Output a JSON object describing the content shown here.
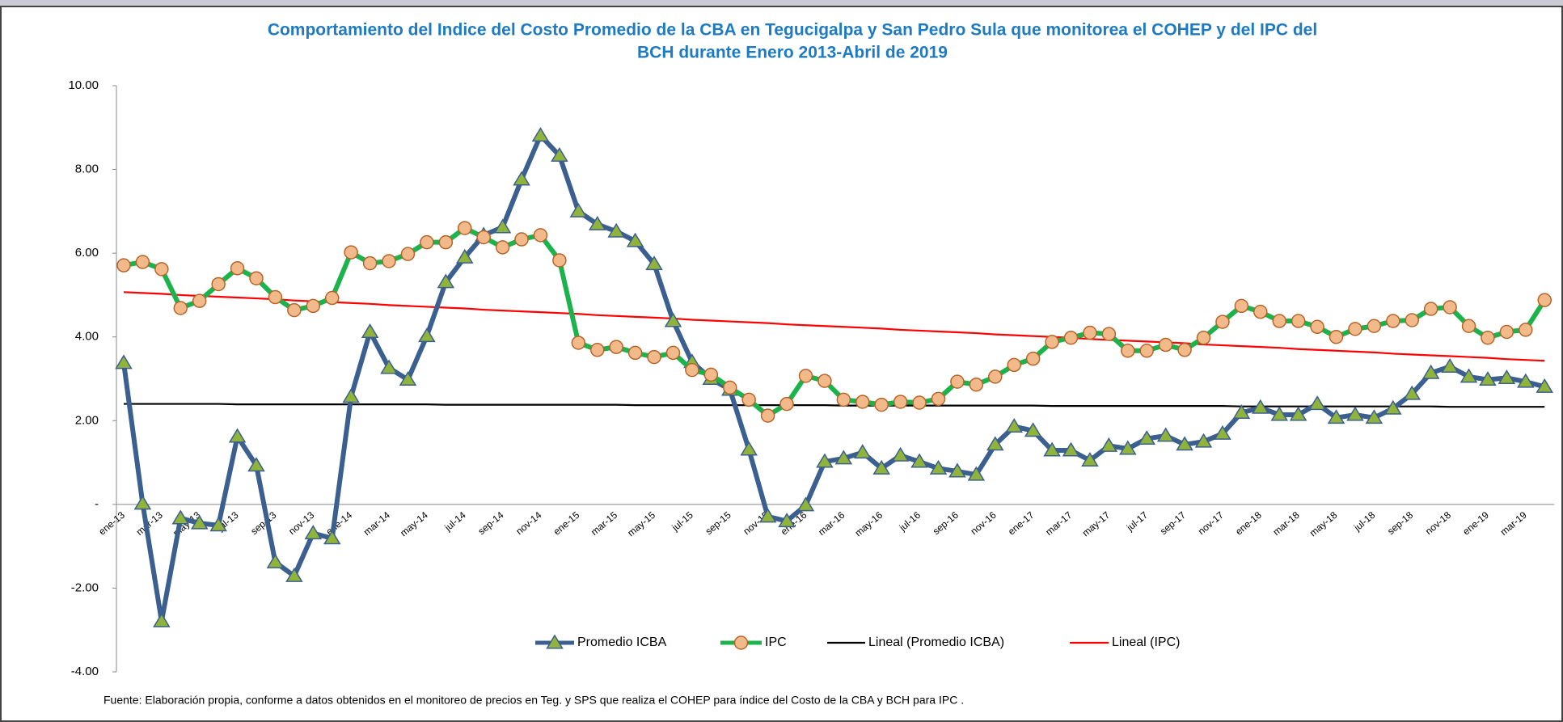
{
  "chart_data": {
    "type": "line",
    "title": [
      "Comportamiento del Indice del Costo Promedio de la CBA en Tegucigalpa y San Pedro Sula que monitorea el COHEP y del IPC del",
      "BCH durante Enero 2013-Abril de 2019"
    ],
    "source": "Fuente: Elaboración propia, conforme  a datos obtenidos en el monitoreo de precios en Teg. y SPS que realiza el COHEP para índice del Costo de la CBA y BCH para IPC .",
    "categories": [
      "ene-13",
      null,
      "mar-13",
      null,
      "may-13",
      null,
      "jul-13",
      null,
      "sep-13",
      null,
      "nov-13",
      null,
      "ene-14",
      null,
      "mar-14",
      null,
      "may-14",
      null,
      "jul-14",
      null,
      "sep-14",
      null,
      "nov-14",
      null,
      "ene-15",
      null,
      "mar-15",
      null,
      "may-15",
      null,
      "jul-15",
      null,
      "sep-15",
      null,
      "nov-15",
      null,
      "ene-16",
      null,
      "mar-16",
      null,
      "may-16",
      null,
      "jul-16",
      null,
      "sep-16",
      null,
      "nov-16",
      null,
      "ene-17",
      null,
      "mar-17",
      null,
      "may-17",
      null,
      "jul-17",
      null,
      "sep-17",
      null,
      "nov-17",
      null,
      "ene-18",
      null,
      "mar-18",
      null,
      "may-18",
      null,
      "jul-18",
      null,
      "sep-18",
      null,
      "nov-18",
      null,
      "ene-19",
      null,
      "mar-19",
      null
    ],
    "ylim": [
      -4,
      10
    ],
    "yticks": [
      {
        "value": -4,
        "label": "-4.00"
      },
      {
        "value": -2,
        "label": "-2.00"
      },
      {
        "value": 0,
        "label": "-"
      },
      {
        "value": 2,
        "label": "2.00"
      },
      {
        "value": 4,
        "label": "4.00"
      },
      {
        "value": 6,
        "label": "6.00"
      },
      {
        "value": 8,
        "label": "8.00"
      },
      {
        "value": 10,
        "label": "10.00"
      }
    ],
    "grid": false,
    "legend": "bottom",
    "series": [
      {
        "name": "Promedio ICBA",
        "color": "#3b5f8f",
        "marker": "triangle",
        "marker_color": "#8fb33b",
        "values": [
          3.38,
          0.02,
          -2.79,
          -0.33,
          -0.45,
          -0.5,
          1.62,
          0.93,
          -1.38,
          -1.71,
          -0.69,
          -0.81,
          2.57,
          4.12,
          3.26,
          2.98,
          4.02,
          5.31,
          5.9,
          6.43,
          6.62,
          7.76,
          8.81,
          8.33,
          7.0,
          6.69,
          6.52,
          6.29,
          5.74,
          4.38,
          3.4,
          3.0,
          2.74,
          1.31,
          -0.29,
          -0.4,
          -0.02,
          1.02,
          1.1,
          1.24,
          0.86,
          1.17,
          1.02,
          0.86,
          0.79,
          0.71,
          1.43,
          1.86,
          1.76,
          1.29,
          1.29,
          1.05,
          1.4,
          1.33,
          1.57,
          1.64,
          1.43,
          1.5,
          1.69,
          2.19,
          2.31,
          2.14,
          2.14,
          2.4,
          2.07,
          2.14,
          2.07,
          2.29,
          2.64,
          3.14,
          3.29,
          3.05,
          2.98,
          3.02,
          2.93,
          2.81
        ]
      },
      {
        "name": "IPC",
        "color": "#1db34c",
        "marker": "circle",
        "marker_color": "#f2b98a",
        "values": [
          5.71,
          5.79,
          5.62,
          4.69,
          4.86,
          5.26,
          5.64,
          5.4,
          4.95,
          4.64,
          4.74,
          4.93,
          6.02,
          5.76,
          5.81,
          5.98,
          6.26,
          6.26,
          6.6,
          6.38,
          6.14,
          6.33,
          6.43,
          5.83,
          3.86,
          3.69,
          3.76,
          3.62,
          3.52,
          3.62,
          3.21,
          3.1,
          2.79,
          2.5,
          2.12,
          2.4,
          3.07,
          2.95,
          2.5,
          2.45,
          2.38,
          2.45,
          2.43,
          2.52,
          2.93,
          2.86,
          3.05,
          3.33,
          3.48,
          3.88,
          3.98,
          4.1,
          4.07,
          3.67,
          3.67,
          3.81,
          3.69,
          3.98,
          4.36,
          4.74,
          4.6,
          4.38,
          4.38,
          4.24,
          4.0,
          4.19,
          4.26,
          4.38,
          4.4,
          4.67,
          4.71,
          4.26,
          3.98,
          4.12,
          4.17,
          4.88
        ]
      },
      {
        "name": "Lineal (Promedio ICBA)",
        "color": "#000000",
        "marker": null,
        "values": [
          2.4,
          2.4,
          2.4,
          2.4,
          2.4,
          2.4,
          2.39,
          2.39,
          2.39,
          2.39,
          2.39,
          2.39,
          2.39,
          2.39,
          2.39,
          2.39,
          2.39,
          2.38,
          2.38,
          2.38,
          2.38,
          2.38,
          2.38,
          2.38,
          2.38,
          2.38,
          2.38,
          2.37,
          2.37,
          2.37,
          2.37,
          2.37,
          2.37,
          2.37,
          2.37,
          2.37,
          2.37,
          2.37,
          2.36,
          2.36,
          2.36,
          2.36,
          2.36,
          2.36,
          2.36,
          2.36,
          2.36,
          2.36,
          2.36,
          2.35,
          2.35,
          2.35,
          2.35,
          2.35,
          2.35,
          2.35,
          2.35,
          2.35,
          2.35,
          2.34,
          2.34,
          2.34,
          2.34,
          2.34,
          2.34,
          2.34,
          2.34,
          2.34,
          2.34,
          2.34,
          2.33,
          2.33,
          2.33,
          2.33,
          2.33,
          2.33
        ]
      },
      {
        "name": "Lineal (IPC)",
        "color": "#ff0000",
        "marker": null,
        "values": [
          5.07,
          5.05,
          5.03,
          5.0,
          4.98,
          4.96,
          4.94,
          4.92,
          4.9,
          4.87,
          4.85,
          4.83,
          4.81,
          4.79,
          4.76,
          4.74,
          4.72,
          4.7,
          4.68,
          4.65,
          4.63,
          4.61,
          4.59,
          4.57,
          4.55,
          4.52,
          4.5,
          4.48,
          4.46,
          4.44,
          4.41,
          4.39,
          4.37,
          4.35,
          4.33,
          4.3,
          4.28,
          4.26,
          4.24,
          4.22,
          4.2,
          4.17,
          4.15,
          4.13,
          4.11,
          4.09,
          4.06,
          4.04,
          4.02,
          4.0,
          3.98,
          3.95,
          3.93,
          3.91,
          3.89,
          3.87,
          3.85,
          3.82,
          3.8,
          3.78,
          3.76,
          3.74,
          3.71,
          3.69,
          3.67,
          3.65,
          3.63,
          3.6,
          3.58,
          3.56,
          3.54,
          3.52,
          3.5,
          3.47,
          3.45,
          3.43
        ]
      }
    ]
  }
}
